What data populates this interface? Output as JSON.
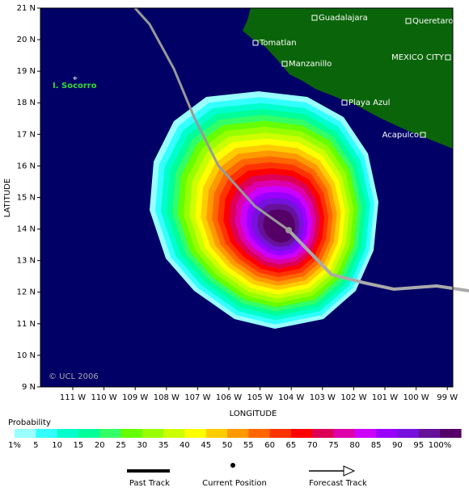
{
  "map": {
    "lat_ticks": [
      "21 N",
      "20 N",
      "19 N",
      "18 N",
      "17 N",
      "16 N",
      "15 N",
      "14 N",
      "13 N",
      "12 N",
      "11 N",
      "10 N",
      "9 N"
    ],
    "lon_ticks": [
      "111 W",
      "110 W",
      "109 W",
      "108 W",
      "107 W",
      "106 W",
      "105 W",
      "104 W",
      "103 W",
      "102 W",
      "101 W",
      "100 W",
      "99 W"
    ],
    "x_label": "LONGITUDE",
    "y_label": "LATITUDE",
    "places": [
      "Guadalajara",
      "Queretaro",
      "Tomatlan",
      "Manzanillo",
      "MEXICO CITY",
      "Playa Azul",
      "Acapulco"
    ],
    "island": "I. Socorro",
    "credit": "© UCL 2006"
  },
  "legend": {
    "title": "Probability",
    "colors": [
      "#99ffff",
      "#33ffff",
      "#00ffcc",
      "#00ff99",
      "#33ff66",
      "#66ff00",
      "#99ff00",
      "#ccff00",
      "#ffff00",
      "#ffcc00",
      "#ff9900",
      "#ff6600",
      "#ff3300",
      "#ff0000",
      "#dd0055",
      "#dd00aa",
      "#cc00ff",
      "#9900ff",
      "#7711dd",
      "#661199",
      "#550066"
    ],
    "labels": [
      "1%",
      "5",
      "10",
      "15",
      "20",
      "25",
      "30",
      "35",
      "40",
      "45",
      "50",
      "55",
      "60",
      "65",
      "70",
      "75",
      "80",
      "85",
      "90",
      "95",
      "100%"
    ]
  },
  "track_legend": [
    "Past Track",
    "Current Position",
    "Forecast Track"
  ]
}
